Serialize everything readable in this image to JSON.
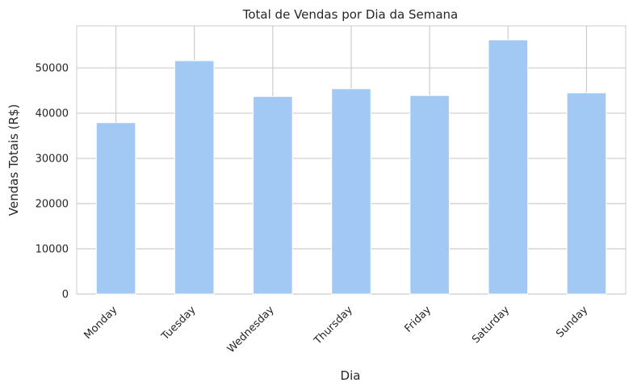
{
  "chart_data": {
    "type": "bar",
    "title": "Total de Vendas por Dia da Semana",
    "xlabel": "Dia",
    "ylabel": "Vendas Totais (R$)",
    "categories": [
      "Monday",
      "Tuesday",
      "Wednesday",
      "Thursday",
      "Friday",
      "Saturday",
      "Sunday"
    ],
    "values": [
      37900,
      51600,
      43700,
      45400,
      43900,
      56200,
      44500
    ],
    "ylim": [
      0,
      59300
    ],
    "yticks": [
      0,
      10000,
      20000,
      30000,
      40000,
      50000
    ],
    "grid": true,
    "legend": "none",
    "colors": {
      "bar": "#a1c9f4",
      "grid": "#cccccc",
      "text": "#262626"
    }
  }
}
